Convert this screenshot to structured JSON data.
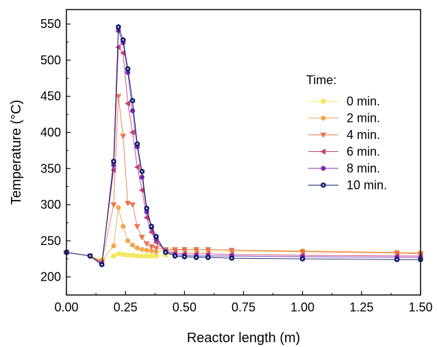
{
  "chart_data": {
    "type": "line",
    "xlabel": "Reactor length (m)",
    "ylabel": "Temperature (°C)",
    "xlim": [
      0,
      1.5
    ],
    "ylim": [
      175,
      570
    ],
    "xticks": [
      0,
      0.25,
      0.5,
      0.75,
      1.0,
      1.25,
      1.5
    ],
    "xtick_labels": [
      "0.00",
      "0.25",
      "0.50",
      "0.75",
      "1.00",
      "1.25",
      "1.50"
    ],
    "yticks": [
      200,
      250,
      300,
      350,
      400,
      450,
      500,
      550
    ],
    "ytick_labels": [
      "200",
      "250",
      "300",
      "350",
      "400",
      "450",
      "500",
      "550"
    ],
    "grid": false,
    "legend_title": "Time:",
    "legend_position": "right",
    "series": [
      {
        "name": "0 min.",
        "color": "#f2e85c",
        "marker": "square",
        "x": [
          0,
          0.1,
          0.15,
          0.2,
          0.22,
          0.24,
          0.26,
          0.28,
          0.3,
          0.32,
          0.34,
          0.36,
          0.38,
          0.42,
          0.46,
          0.5,
          0.55,
          0.6,
          0.7,
          1.0,
          1.4,
          1.5
        ],
        "y": [
          234,
          229,
          224,
          229,
          232,
          231,
          230,
          230,
          229,
          229,
          229,
          229,
          229,
          230,
          232,
          234,
          235,
          235,
          235,
          235,
          234,
          233
        ]
      },
      {
        "name": "2 min.",
        "color": "#f4a74a",
        "marker": "circle",
        "x": [
          0,
          0.1,
          0.15,
          0.2,
          0.22,
          0.24,
          0.26,
          0.28,
          0.3,
          0.32,
          0.34,
          0.36,
          0.38,
          0.42,
          0.46,
          0.5,
          0.55,
          0.6,
          0.7,
          1.0,
          1.4,
          1.5
        ],
        "y": [
          234,
          229,
          222,
          243,
          296,
          270,
          250,
          244,
          240,
          238,
          237,
          236,
          235,
          236,
          237,
          238,
          238,
          238,
          237,
          236,
          234,
          233
        ]
      },
      {
        "name": "4 min.",
        "color": "#e8734f",
        "marker": "triangle-down",
        "x": [
          0,
          0.1,
          0.15,
          0.2,
          0.22,
          0.24,
          0.26,
          0.28,
          0.3,
          0.32,
          0.34,
          0.36,
          0.38,
          0.42,
          0.46,
          0.5,
          0.55,
          0.6,
          0.7,
          1.0,
          1.4,
          1.5
        ],
        "y": [
          234,
          229,
          221,
          300,
          450,
          395,
          302,
          300,
          270,
          255,
          246,
          242,
          240,
          238,
          238,
          238,
          238,
          238,
          237,
          235,
          233,
          232
        ]
      },
      {
        "name": "6 min.",
        "color": "#c83e76",
        "marker": "triangle-left",
        "x": [
          0,
          0.1,
          0.15,
          0.2,
          0.22,
          0.24,
          0.26,
          0.28,
          0.3,
          0.32,
          0.34,
          0.36,
          0.38,
          0.42,
          0.46,
          0.5,
          0.55,
          0.6,
          0.7,
          1.0,
          1.4,
          1.5
        ],
        "y": [
          234,
          229,
          219,
          348,
          518,
          510,
          440,
          400,
          352,
          320,
          282,
          262,
          248,
          236,
          233,
          232,
          232,
          232,
          231,
          230,
          229,
          229
        ]
      },
      {
        "name": "8 min.",
        "color": "#7b2eb4",
        "marker": "circle",
        "x": [
          0,
          0.1,
          0.15,
          0.2,
          0.22,
          0.24,
          0.26,
          0.28,
          0.3,
          0.32,
          0.34,
          0.36,
          0.38,
          0.42,
          0.46,
          0.5,
          0.55,
          0.6,
          0.7,
          1.0,
          1.4,
          1.5
        ],
        "y": [
          234,
          229,
          218,
          355,
          541,
          524,
          483,
          430,
          380,
          338,
          290,
          268,
          252,
          235,
          231,
          230,
          229,
          229,
          229,
          228,
          227,
          227
        ]
      },
      {
        "name": "10 min.",
        "color": "#0d1a6b",
        "marker": "hexagon",
        "x": [
          0,
          0.1,
          0.15,
          0.2,
          0.22,
          0.24,
          0.26,
          0.28,
          0.3,
          0.32,
          0.34,
          0.36,
          0.38,
          0.42,
          0.46,
          0.5,
          0.55,
          0.6,
          0.7,
          1.0,
          1.4,
          1.5
        ],
        "y": [
          234,
          229,
          217,
          360,
          546,
          528,
          488,
          444,
          384,
          346,
          295,
          270,
          256,
          234,
          229,
          228,
          227,
          227,
          226,
          225,
          224,
          224
        ]
      }
    ]
  }
}
